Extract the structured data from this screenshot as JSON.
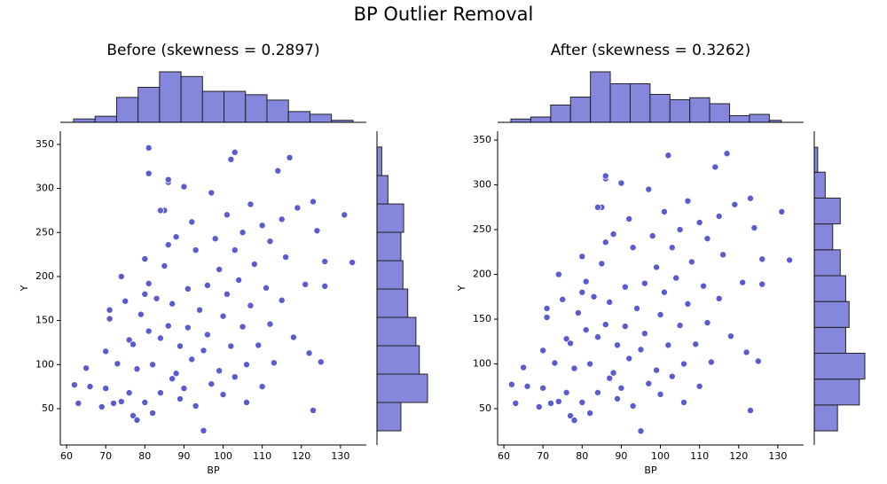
{
  "title": "BP Outlier Removal",
  "chart_data": [
    {
      "type": "scatter",
      "title": "Before (skewness = 0.2897)",
      "x_label": "BP",
      "y_label": "Y",
      "color": "#5b5bd1",
      "hist_color": "#8587dd",
      "xlim": [
        58.4,
        136.6
      ],
      "ylim": [
        8.7,
        365
      ],
      "xticks": [
        60,
        70,
        80,
        90,
        100,
        110,
        120,
        130
      ],
      "yticks": [
        50,
        100,
        150,
        200,
        250,
        300,
        350
      ],
      "x": [
        62,
        63,
        65,
        66,
        69,
        70,
        70,
        71,
        71,
        72,
        73,
        74,
        74,
        75,
        76,
        76,
        77,
        77,
        78,
        78,
        79,
        80,
        80,
        80,
        81,
        81,
        82,
        82,
        83,
        84,
        84,
        85,
        85,
        86,
        86,
        86,
        87,
        87,
        88,
        88,
        89,
        89,
        90,
        90,
        91,
        91,
        92,
        92,
        93,
        93,
        94,
        95,
        95,
        96,
        96,
        97,
        97,
        98,
        99,
        99,
        100,
        100,
        101,
        101,
        102,
        102,
        103,
        103,
        104,
        105,
        105,
        106,
        106,
        107,
        107,
        108,
        109,
        110,
        110,
        111,
        112,
        112,
        113,
        114,
        115,
        115,
        116,
        117,
        118,
        119,
        121,
        122,
        123,
        123,
        124,
        125,
        126,
        126,
        131,
        133,
        81,
        81,
        103,
        86,
        84
      ],
      "y": [
        77,
        56,
        96,
        75,
        52,
        115,
        73,
        162,
        152,
        56,
        101,
        58,
        200,
        172,
        128,
        68,
        42,
        123,
        95,
        37,
        157,
        220,
        180,
        57,
        192,
        138,
        100,
        45,
        175,
        68,
        130,
        275,
        212,
        144,
        307,
        236,
        84,
        169,
        245,
        90,
        121,
        61,
        302,
        73,
        142,
        186,
        262,
        106,
        230,
        53,
        162,
        116,
        25,
        190,
        134,
        295,
        78,
        243,
        208,
        93,
        155,
        66,
        270,
        180,
        333,
        121,
        230,
        86,
        196,
        250,
        143,
        100,
        57,
        282,
        167,
        214,
        122,
        258,
        75,
        187,
        240,
        146,
        102,
        320,
        265,
        173,
        222,
        335,
        131,
        278,
        191,
        113,
        48,
        285,
        252,
        103,
        189,
        217,
        270,
        216,
        346,
        317,
        341,
        310,
        275
      ],
      "top_hist": {
        "bins": [
          61.8,
          67.29,
          72.78,
          78.27,
          83.76,
          89.25,
          94.74,
          100.23,
          105.72,
          111.21,
          116.7,
          122.19,
          127.68,
          133.2
        ],
        "counts": [
          5,
          9,
          37,
          52,
          75,
          68,
          46,
          46,
          41,
          33,
          16,
          12,
          3
        ]
      },
      "right_hist": {
        "bins": [
          24.8,
          57,
          89.2,
          121.4,
          153.6,
          185.8,
          218,
          250.2,
          282.4,
          314.6,
          347
        ],
        "counts": [
          35,
          74,
          62,
          57,
          45,
          38,
          35,
          39,
          16,
          7
        ]
      }
    },
    {
      "type": "scatter",
      "title": "After (skewness = 0.3262)",
      "x_label": "BP",
      "y_label": "Y",
      "color": "#5b5bd1",
      "hist_color": "#8587dd",
      "xlim": [
        58.4,
        136.6
      ],
      "ylim": [
        9.4,
        360
      ],
      "xticks": [
        60,
        70,
        80,
        90,
        100,
        110,
        120,
        130
      ],
      "yticks": [
        50,
        100,
        150,
        200,
        250,
        300,
        350
      ],
      "x": [
        62,
        63,
        65,
        66,
        69,
        70,
        70,
        71,
        71,
        72,
        73,
        74,
        74,
        75,
        76,
        76,
        77,
        77,
        78,
        78,
        79,
        80,
        80,
        80,
        81,
        81,
        82,
        82,
        83,
        84,
        84,
        85,
        85,
        86,
        86,
        86,
        87,
        87,
        88,
        88,
        89,
        89,
        90,
        90,
        91,
        91,
        92,
        92,
        93,
        93,
        94,
        95,
        95,
        96,
        96,
        97,
        97,
        98,
        99,
        99,
        100,
        100,
        101,
        101,
        102,
        102,
        103,
        103,
        104,
        105,
        105,
        106,
        106,
        107,
        107,
        108,
        109,
        110,
        110,
        111,
        112,
        112,
        113,
        114,
        115,
        115,
        116,
        117,
        118,
        119,
        121,
        122,
        123,
        123,
        124,
        125,
        126,
        126,
        131,
        133,
        86,
        84
      ],
      "y": [
        77,
        56,
        96,
        75,
        52,
        115,
        73,
        162,
        152,
        56,
        101,
        58,
        200,
        172,
        128,
        68,
        42,
        123,
        95,
        37,
        157,
        220,
        180,
        57,
        192,
        138,
        100,
        45,
        175,
        68,
        130,
        275,
        212,
        144,
        307,
        236,
        84,
        169,
        245,
        90,
        121,
        61,
        302,
        73,
        142,
        186,
        262,
        106,
        230,
        53,
        162,
        116,
        25,
        190,
        134,
        295,
        78,
        243,
        208,
        93,
        155,
        66,
        270,
        180,
        333,
        121,
        230,
        86,
        196,
        250,
        143,
        100,
        57,
        282,
        167,
        214,
        122,
        258,
        75,
        187,
        240,
        146,
        102,
        320,
        265,
        173,
        222,
        335,
        131,
        278,
        191,
        113,
        48,
        285,
        252,
        103,
        189,
        217,
        270,
        216,
        310,
        275
      ],
      "top_hist": {
        "bins": [
          61.8,
          66.88,
          71.96,
          77.04,
          82.12,
          87.2,
          92.28,
          97.36,
          102.44,
          107.52,
          112.6,
          117.68,
          122.76,
          127.84,
          130.9
        ],
        "counts": [
          5,
          8,
          26,
          38,
          76,
          58,
          58,
          42,
          34,
          37,
          28,
          10,
          12,
          3
        ]
      },
      "right_hist": {
        "bins": [
          25.2,
          54.1,
          83,
          111.9,
          140.8,
          169.7,
          198.6,
          227.5,
          256.4,
          285.3,
          314.2,
          342
        ],
        "counts": [
          34,
          66,
          74,
          46,
          51,
          46,
          38,
          27,
          38,
          16,
          5
        ]
      }
    }
  ]
}
